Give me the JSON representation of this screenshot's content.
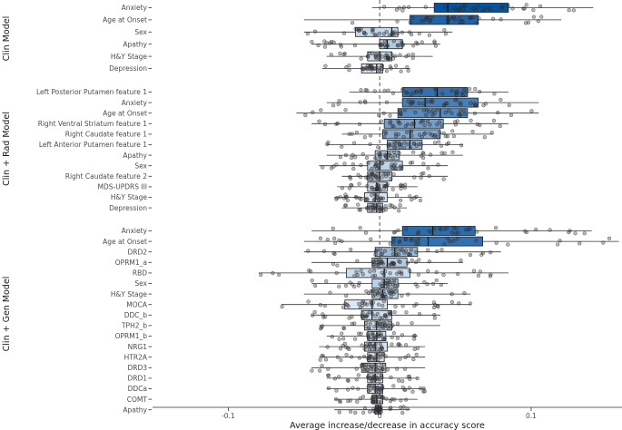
{
  "chart_data": {
    "type": "boxplot",
    "orientation": "horizontal",
    "xlabel": "Average increase/decrease in accuracy score",
    "xlim": [
      -0.15,
      0.16
    ],
    "x_ticks": [
      {
        "value": -0.1,
        "label": "-0.1"
      },
      {
        "value": 0,
        "label": "0"
      },
      {
        "value": 0.1,
        "label": "0.1"
      }
    ],
    "reference_line": 0,
    "color_scale": {
      "low": "#dbe9f6",
      "high": "#08519c"
    },
    "panels": [
      {
        "name": "Clin Model",
        "features": [
          {
            "label": "Anxiety",
            "min": -0.005,
            "q1": 0.036,
            "median": 0.045,
            "q3": 0.085,
            "max": 0.141,
            "mean": 0.052
          },
          {
            "label": "Age at Onset",
            "min": -0.05,
            "q1": 0.02,
            "median": 0.045,
            "q3": 0.065,
            "max": 0.12,
            "mean": 0.045
          },
          {
            "label": "Sex",
            "min": -0.05,
            "q1": -0.016,
            "median": 0.008,
            "q3": 0.012,
            "max": 0.048,
            "mean": 0.0
          },
          {
            "label": "Apathy",
            "min": -0.045,
            "q1": 0.0,
            "median": 0.005,
            "q3": 0.015,
            "max": 0.04,
            "mean": 0.006
          },
          {
            "label": "H&Y Stage",
            "min": -0.035,
            "q1": -0.008,
            "median": 0.0,
            "q3": 0.008,
            "max": 0.035,
            "mean": -0.002
          },
          {
            "label": "Depression",
            "min": -0.038,
            "q1": -0.012,
            "median": -0.002,
            "q3": 0.002,
            "max": 0.02,
            "mean": -0.006
          }
        ]
      },
      {
        "name": "Clin + Rad Model",
        "features": [
          {
            "label": "Left Posterior Putamen feature 1",
            "min": -0.02,
            "q1": 0.015,
            "median": 0.038,
            "q3": 0.058,
            "max": 0.085,
            "mean": 0.04
          },
          {
            "label": "Anxiety",
            "min": -0.035,
            "q1": 0.015,
            "median": 0.03,
            "q3": 0.065,
            "max": 0.105,
            "mean": 0.035
          },
          {
            "label": "Age at Onset",
            "min": -0.055,
            "q1": 0.012,
            "median": 0.04,
            "q3": 0.058,
            "max": 0.105,
            "mean": 0.03
          },
          {
            "label": "Right Ventral Striatum feature 1",
            "min": -0.045,
            "q1": 0.003,
            "median": 0.023,
            "q3": 0.042,
            "max": 0.085,
            "mean": 0.022
          },
          {
            "label": "Right Caudate feature 1",
            "min": -0.025,
            "q1": 0.002,
            "median": 0.02,
            "q3": 0.04,
            "max": 0.075,
            "mean": 0.018
          },
          {
            "label": "Left Anterior Putamen feature 1",
            "min": -0.035,
            "q1": 0.005,
            "median": 0.02,
            "q3": 0.028,
            "max": 0.055,
            "mean": 0.015
          },
          {
            "label": "Apathy",
            "min": -0.035,
            "q1": -0.003,
            "median": 0.005,
            "q3": 0.013,
            "max": 0.055,
            "mean": 0.004
          },
          {
            "label": "Sex",
            "min": -0.04,
            "q1": -0.008,
            "median": 0.0,
            "q3": 0.015,
            "max": 0.045,
            "mean": 0.002
          },
          {
            "label": "Right Caudate feature 2",
            "min": -0.025,
            "q1": -0.008,
            "median": 0.0,
            "q3": 0.008,
            "max": 0.045,
            "mean": -0.001
          },
          {
            "label": "MDS-UPDRS III",
            "min": -0.028,
            "q1": -0.008,
            "median": -0.002,
            "q3": 0.005,
            "max": 0.025,
            "mean": -0.003
          },
          {
            "label": "H&Y Stage",
            "min": -0.03,
            "q1": -0.01,
            "median": -0.003,
            "q3": 0.005,
            "max": 0.028,
            "mean": -0.004
          },
          {
            "label": "Depression",
            "min": -0.025,
            "q1": -0.008,
            "median": -0.002,
            "q3": 0.002,
            "max": 0.018,
            "mean": -0.005
          }
        ]
      },
      {
        "name": "Clin + Gen Model",
        "features": [
          {
            "label": "Anxiety",
            "min": -0.045,
            "q1": 0.015,
            "median": 0.035,
            "q3": 0.063,
            "max": 0.14,
            "mean": 0.042
          },
          {
            "label": "Age at Onset",
            "min": -0.05,
            "q1": 0.008,
            "median": 0.032,
            "q3": 0.068,
            "max": 0.158,
            "mean": 0.04
          },
          {
            "label": "DRD2",
            "min": -0.05,
            "q1": -0.003,
            "median": 0.01,
            "q3": 0.025,
            "max": 0.08,
            "mean": 0.012
          },
          {
            "label": "OPRM1_a",
            "min": -0.045,
            "q1": -0.005,
            "median": 0.005,
            "q3": 0.018,
            "max": 0.055,
            "mean": 0.006
          },
          {
            "label": "RBD",
            "min": -0.08,
            "q1": -0.022,
            "median": 0.003,
            "q3": 0.02,
            "max": 0.085,
            "mean": -0.002
          },
          {
            "label": "Sex",
            "min": -0.045,
            "q1": -0.005,
            "median": 0.003,
            "q3": 0.012,
            "max": 0.045,
            "mean": 0.003
          },
          {
            "label": "H&Y Stage",
            "min": -0.05,
            "q1": -0.005,
            "median": 0.002,
            "q3": 0.012,
            "max": 0.06,
            "mean": 0.002
          },
          {
            "label": "MOCA",
            "min": -0.065,
            "q1": -0.023,
            "median": -0.005,
            "q3": 0.005,
            "max": 0.06,
            "mean": -0.006
          },
          {
            "label": "DDC_b",
            "min": -0.045,
            "q1": -0.012,
            "median": -0.005,
            "q3": 0.008,
            "max": 0.04,
            "mean": -0.002
          },
          {
            "label": "TPH2_b",
            "min": -0.04,
            "q1": -0.01,
            "median": -0.002,
            "q3": 0.008,
            "max": 0.04,
            "mean": -0.002
          },
          {
            "label": "OPRM1_b",
            "min": -0.035,
            "q1": -0.008,
            "median": -0.002,
            "q3": 0.004,
            "max": 0.025,
            "mean": -0.003
          },
          {
            "label": "NRG1",
            "min": -0.04,
            "q1": -0.01,
            "median": -0.003,
            "q3": 0.005,
            "max": 0.03,
            "mean": -0.003
          },
          {
            "label": "HTR2A",
            "min": -0.04,
            "q1": -0.008,
            "median": -0.002,
            "q3": 0.003,
            "max": 0.03,
            "mean": -0.004
          },
          {
            "label": "DRD3",
            "min": -0.045,
            "q1": -0.012,
            "median": -0.003,
            "q3": 0.004,
            "max": 0.03,
            "mean": -0.005
          },
          {
            "label": "DRD1",
            "min": -0.035,
            "q1": -0.008,
            "median": -0.003,
            "q3": 0.002,
            "max": 0.025,
            "mean": -0.005
          },
          {
            "label": "DDCa",
            "min": -0.035,
            "q1": -0.008,
            "median": -0.003,
            "q3": 0.002,
            "max": 0.03,
            "mean": -0.004
          },
          {
            "label": "COMT",
            "min": -0.03,
            "q1": -0.005,
            "median": -0.002,
            "q3": 0.002,
            "max": 0.025,
            "mean": -0.004
          },
          {
            "label": "Apathy",
            "min": -0.03,
            "q1": -0.003,
            "median": -0.001,
            "q3": 0.001,
            "max": 0.02,
            "mean": -0.004
          }
        ]
      }
    ]
  }
}
